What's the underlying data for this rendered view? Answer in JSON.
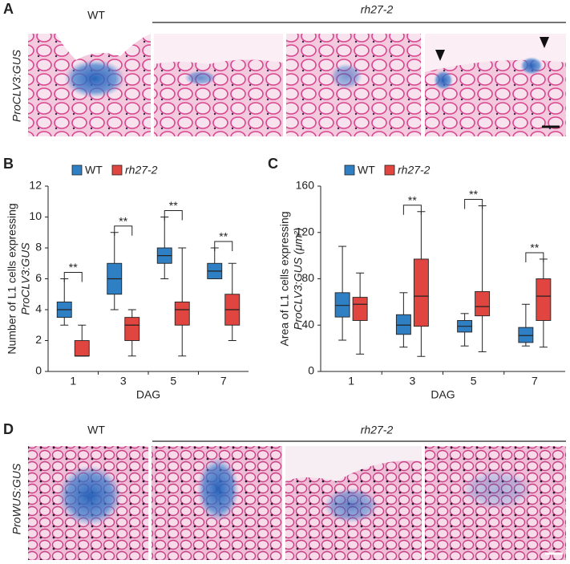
{
  "panel_a": {
    "label": "A",
    "wt": "WT",
    "mutant": "rh27-2",
    "reporter": "ProCLV3:GUS"
  },
  "chart_data": [
    {
      "type": "box",
      "label": "B",
      "y_label": [
        "Number of L1 cells expressing",
        "ProCLV3:GUS"
      ],
      "x_label": "DAG",
      "categories": [
        "1",
        "3",
        "5",
        "7"
      ],
      "ylim": [
        0,
        12
      ],
      "yticks": [
        0,
        2,
        4,
        6,
        8,
        10,
        12
      ],
      "significance": [
        "**",
        "**",
        "**",
        "**"
      ],
      "series": [
        {
          "name": "WT",
          "color": "#2f7fc4",
          "min": [
            3,
            4,
            6,
            6
          ],
          "q1": [
            3.5,
            5,
            7,
            6
          ],
          "median": [
            4,
            6,
            7.5,
            6.5
          ],
          "q3": [
            4.5,
            7,
            8,
            7
          ],
          "max": [
            6,
            9,
            10,
            8
          ]
        },
        {
          "name": "rh27-2",
          "color": "#e0453f",
          "min": [
            1,
            1,
            1,
            2
          ],
          "q1": [
            1,
            2,
            3,
            3
          ],
          "median": [
            1,
            3,
            4,
            4
          ],
          "q3": [
            2,
            3.5,
            4.5,
            5
          ],
          "max": [
            3,
            4,
            8,
            7
          ]
        }
      ]
    },
    {
      "type": "box",
      "label": "C",
      "y_label": [
        "Area of L1 cells expressing",
        "ProCLV3:GUS (μm²)"
      ],
      "x_label": "DAG",
      "categories": [
        "1",
        "3",
        "5",
        "7"
      ],
      "ylim": [
        0,
        160
      ],
      "yticks": [
        0,
        40,
        80,
        120,
        160
      ],
      "significance": [
        null,
        "**",
        "**",
        "**"
      ],
      "series": [
        {
          "name": "WT",
          "color": "#2f7fc4",
          "min": [
            27,
            21,
            22,
            22
          ],
          "q1": [
            47,
            32,
            34,
            25
          ],
          "median": [
            57,
            40,
            39,
            31
          ],
          "q3": [
            68,
            49,
            44,
            38
          ],
          "max": [
            108,
            68,
            50,
            58
          ]
        },
        {
          "name": "rh27-2",
          "color": "#e0453f",
          "min": [
            15,
            13,
            17,
            21
          ],
          "q1": [
            44,
            39,
            48,
            44
          ],
          "median": [
            58,
            65,
            56,
            65
          ],
          "q3": [
            64,
            97,
            69,
            80
          ],
          "max": [
            85,
            138,
            143,
            97
          ]
        }
      ]
    }
  ],
  "panel_d": {
    "label": "D",
    "wt": "WT",
    "mutant": "rh27-2",
    "reporter": "ProWUS:GUS"
  }
}
